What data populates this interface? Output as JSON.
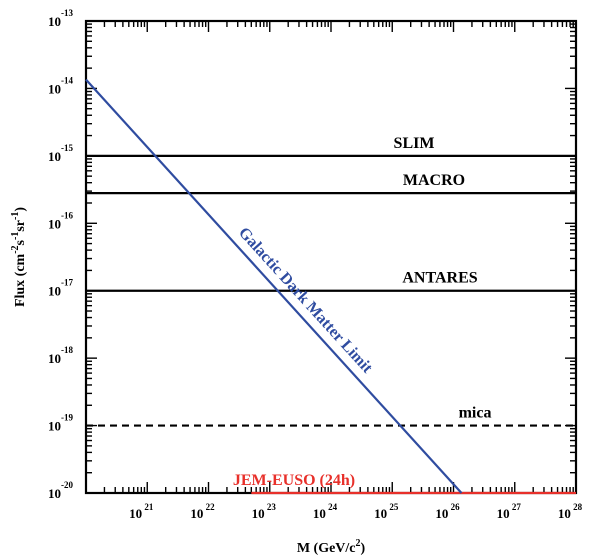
{
  "chart_data": {
    "type": "line",
    "xlabel_prefix": "M (GeV/c",
    "xlabel_exp": "2",
    "xlabel_suffix": ")",
    "ylabel": "Flux (cm-2s-1sr-1)",
    "x_scale": "log",
    "y_scale": "log",
    "xlim": [
      1e+20,
      1e+28
    ],
    "ylim": [
      1e-20,
      1e-13
    ],
    "x_ticks": [
      {
        "value": 1e+21,
        "base": "10",
        "exp": "21"
      },
      {
        "value": 1e+22,
        "base": "10",
        "exp": "22"
      },
      {
        "value": 1e+23,
        "base": "10",
        "exp": "23"
      },
      {
        "value": 1e+24,
        "base": "10",
        "exp": "24"
      },
      {
        "value": 1e+25,
        "base": "10",
        "exp": "25"
      },
      {
        "value": 1e+26,
        "base": "10",
        "exp": "26"
      },
      {
        "value": 1e+27,
        "base": "10",
        "exp": "27"
      },
      {
        "value": 1e+28,
        "base": "10",
        "exp": "28"
      }
    ],
    "y_ticks": [
      {
        "value": 1e-20,
        "base": "10",
        "exp": "-20"
      },
      {
        "value": 1e-19,
        "base": "10",
        "exp": "-19"
      },
      {
        "value": 1e-18,
        "base": "10",
        "exp": "-18"
      },
      {
        "value": 1e-17,
        "base": "10",
        "exp": "-17"
      },
      {
        "value": 1e-16,
        "base": "10",
        "exp": "-16"
      },
      {
        "value": 1e-15,
        "base": "10",
        "exp": "-15"
      },
      {
        "value": 1e-14,
        "base": "10",
        "exp": "-14"
      },
      {
        "value": 1e-13,
        "base": "10",
        "exp": "-13"
      }
    ],
    "series": [
      {
        "name": "SLIM",
        "color": "#000000",
        "style": "solid",
        "x": [
          1e+20,
          1e+28
        ],
        "y": [
          1e-15,
          1e-15
        ]
      },
      {
        "name": "MACRO",
        "color": "#000000",
        "style": "solid",
        "x": [
          1e+20,
          1e+28
        ],
        "y": [
          2.8e-16,
          2.8e-16
        ]
      },
      {
        "name": "ANTARES",
        "color": "#000000",
        "style": "solid",
        "x": [
          1e+20,
          1e+28
        ],
        "y": [
          1e-17,
          1e-17
        ]
      },
      {
        "name": "mica",
        "color": "#000000",
        "style": "dashed",
        "x": [
          1e+20,
          1e+28
        ],
        "y": [
          1e-19,
          1e-19
        ]
      },
      {
        "name": "JEM-EUSO (24h)",
        "color": "#e8302a",
        "style": "solid",
        "x": [
          5e+22,
          1e+28
        ],
        "y": [
          1e-20,
          1e-20
        ]
      },
      {
        "name": "Galactic Dark Matter Limit",
        "color": "#2f4ca0",
        "style": "solid",
        "x": [
          1e+20,
          1.35e+26
        ],
        "y": [
          1.35e-14,
          1e-20
        ]
      }
    ]
  }
}
